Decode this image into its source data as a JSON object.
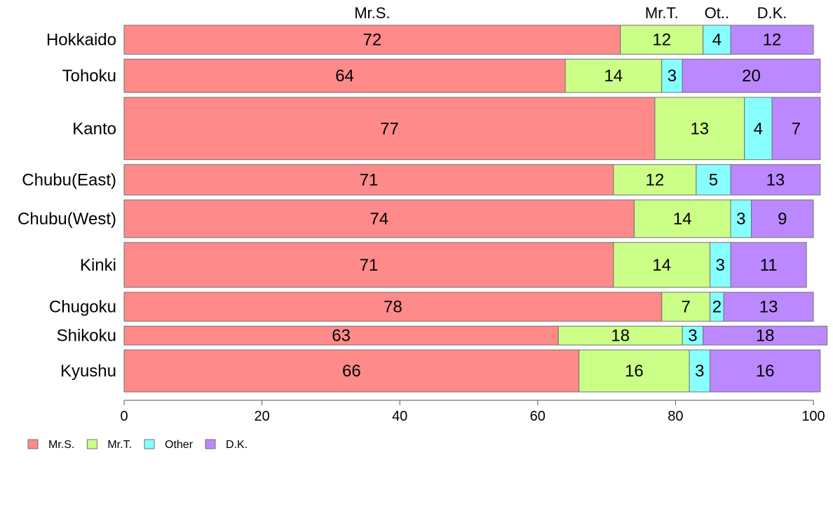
{
  "chart_data": {
    "type": "bar",
    "orientation": "horizontal",
    "stacked": true,
    "categories": [
      "Hokkaido",
      "Tohoku",
      "Kanto",
      "Chubu(East)",
      "Chubu(West)",
      "Kinki",
      "Chugoku",
      "Shikoku",
      "Kyushu"
    ],
    "weights": [
      1.0,
      1.15,
      2.15,
      1.05,
      1.3,
      1.55,
      1.0,
      0.65,
      1.45
    ],
    "series": [
      {
        "name": "Mr.S.",
        "top_label": "Mr.S.",
        "color": "#ff8a8a",
        "values": [
          72,
          64,
          77,
          71,
          74,
          71,
          78,
          63,
          66
        ]
      },
      {
        "name": "Mr.T.",
        "top_label": "Mr.T.",
        "color": "#ccff88",
        "values": [
          12,
          14,
          13,
          12,
          14,
          14,
          7,
          18,
          16
        ]
      },
      {
        "name": "Other",
        "top_label": "Ot..",
        "color": "#88ffff",
        "values": [
          4,
          3,
          4,
          5,
          3,
          3,
          2,
          3,
          3
        ]
      },
      {
        "name": "D.K.",
        "top_label": "D.K.",
        "color": "#bb88ff",
        "values": [
          12,
          20,
          7,
          13,
          9,
          11,
          13,
          18,
          16
        ]
      }
    ],
    "xlim": [
      0,
      100
    ],
    "xticks": [
      "0",
      "20",
      "40",
      "60",
      "80",
      "100"
    ],
    "grid": false,
    "legend_position": "bottom-left"
  }
}
